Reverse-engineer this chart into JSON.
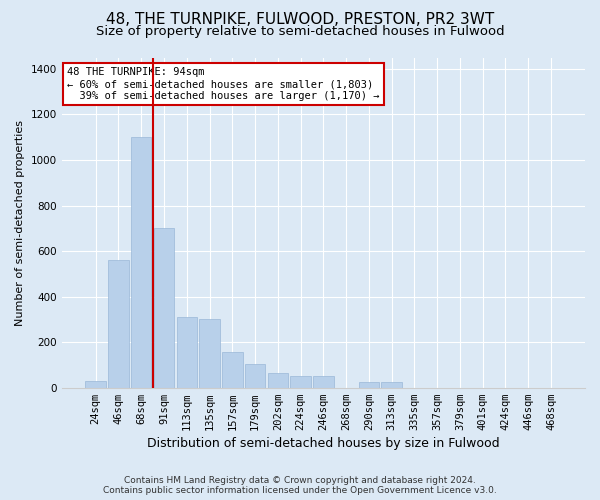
{
  "title": "48, THE TURNPIKE, FULWOOD, PRESTON, PR2 3WT",
  "subtitle": "Size of property relative to semi-detached houses in Fulwood",
  "xlabel": "Distribution of semi-detached houses by size in Fulwood",
  "ylabel": "Number of semi-detached properties",
  "categories": [
    "24sqm",
    "46sqm",
    "68sqm",
    "91sqm",
    "113sqm",
    "135sqm",
    "157sqm",
    "179sqm",
    "202sqm",
    "224sqm",
    "246sqm",
    "268sqm",
    "290sqm",
    "313sqm",
    "335sqm",
    "357sqm",
    "379sqm",
    "401sqm",
    "424sqm",
    "446sqm",
    "468sqm"
  ],
  "values": [
    30,
    560,
    1100,
    700,
    310,
    300,
    155,
    105,
    65,
    50,
    50,
    0,
    25,
    25,
    0,
    0,
    0,
    0,
    0,
    0,
    0
  ],
  "bar_color": "#b8d0ea",
  "bar_edge_color": "#9ab8d8",
  "vline_x": 2.5,
  "vline_color": "#cc0000",
  "annotation_text": "48 THE TURNPIKE: 94sqm\n← 60% of semi-detached houses are smaller (1,803)\n  39% of semi-detached houses are larger (1,170) →",
  "annotation_box_facecolor": "#ffffff",
  "annotation_box_edgecolor": "#cc0000",
  "background_color": "#dce9f5",
  "footer_line1": "Contains HM Land Registry data © Crown copyright and database right 2024.",
  "footer_line2": "Contains public sector information licensed under the Open Government Licence v3.0.",
  "ylim": [
    0,
    1450
  ],
  "title_fontsize": 11,
  "subtitle_fontsize": 9.5,
  "ylabel_fontsize": 8,
  "xlabel_fontsize": 9,
  "tick_fontsize": 7.5,
  "annotation_fontsize": 7.5,
  "footer_fontsize": 6.5
}
